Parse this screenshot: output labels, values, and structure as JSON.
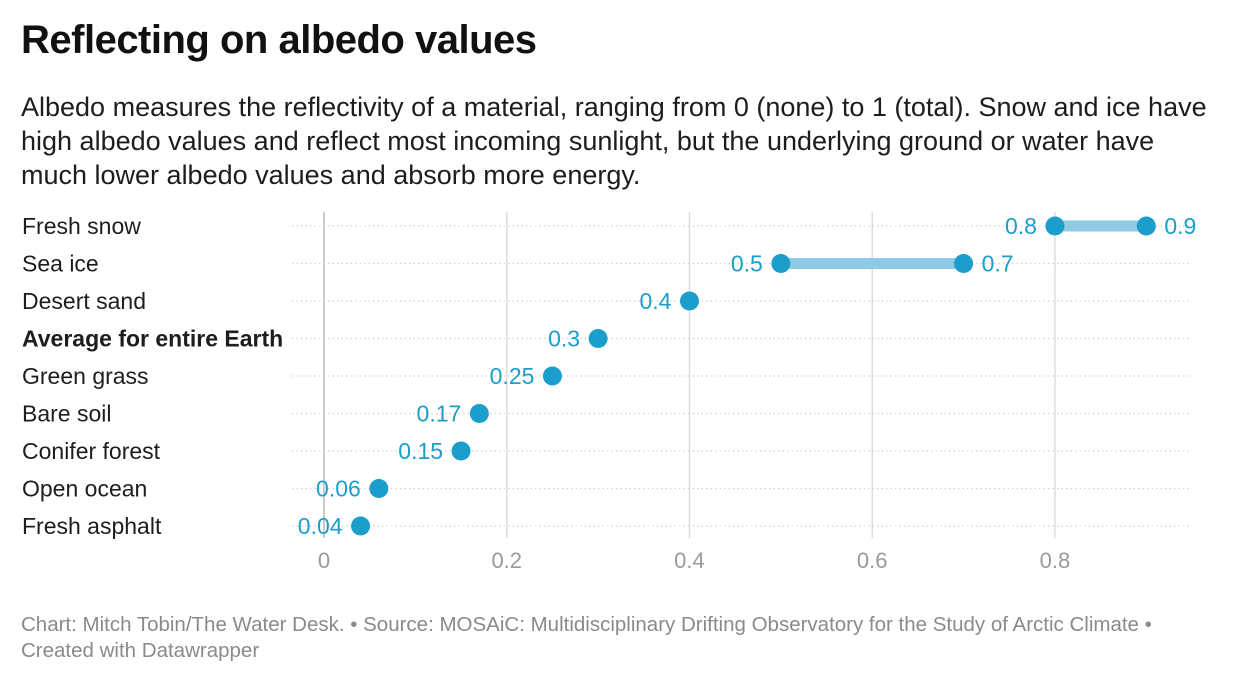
{
  "header": {
    "title": "Reflecting on albedo values",
    "subtitle": "Albedo measures the reflectivity of a material, ranging from 0 (none) to 1 (total). Snow and ice have high albedo values and reflect most incoming sunlight, but the underlying ground or water have much lower albedo values and absorb more energy."
  },
  "footer": {
    "text": "Chart: Mitch Tobin/The Water Desk. • Source: MOSAiC: Multidisciplinary Drifting Observatory for the Study of Arctic Climate • Created with Datawrapper"
  },
  "colors": {
    "dot": "#1b9ecb",
    "range_bar": "#8ccbe3",
    "value_label": "#1b9ecb",
    "tick_label": "#9a9a9a",
    "gridline": "#d6d6d6",
    "row_line": "#d2d2d2"
  },
  "chart_data": {
    "type": "range-dot",
    "x_axis": {
      "min": 0,
      "max": 0.95,
      "ticks": [
        0,
        0.2,
        0.4,
        0.6,
        0.8
      ],
      "tick_labels": [
        "0",
        "0.2",
        "0.4",
        "0.6",
        "0.8"
      ]
    },
    "grid": true,
    "rows": [
      {
        "label": "Fresh snow",
        "values": [
          0.8,
          0.9
        ],
        "value_labels": [
          "0.8",
          "0.9"
        ],
        "bold": false
      },
      {
        "label": "Sea ice",
        "values": [
          0.5,
          0.7
        ],
        "value_labels": [
          "0.5",
          "0.7"
        ],
        "bold": false
      },
      {
        "label": "Desert sand",
        "values": [
          0.4
        ],
        "value_labels": [
          "0.4"
        ],
        "bold": false
      },
      {
        "label": "Average for entire Earth",
        "values": [
          0.3
        ],
        "value_labels": [
          "0.3"
        ],
        "bold": true
      },
      {
        "label": "Green grass",
        "values": [
          0.25
        ],
        "value_labels": [
          "0.25"
        ],
        "bold": false
      },
      {
        "label": "Bare soil",
        "values": [
          0.17
        ],
        "value_labels": [
          "0.17"
        ],
        "bold": false
      },
      {
        "label": "Conifer forest",
        "values": [
          0.15
        ],
        "value_labels": [
          "0.15"
        ],
        "bold": false
      },
      {
        "label": "Open ocean",
        "values": [
          0.06
        ],
        "value_labels": [
          "0.06"
        ],
        "bold": false
      },
      {
        "label": "Fresh asphalt",
        "values": [
          0.04
        ],
        "value_labels": [
          "0.04"
        ],
        "bold": false
      }
    ]
  }
}
